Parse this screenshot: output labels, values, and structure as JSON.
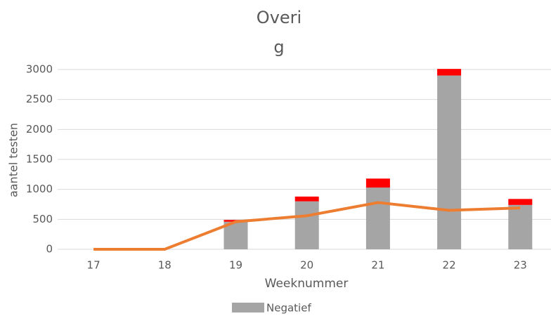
{
  "chart_data": {
    "type": "bar",
    "title": [
      "Overi",
      "g"
    ],
    "x_label": "Weeknummer",
    "y_label": "aantel testen",
    "categories": [
      "17",
      "18",
      "19",
      "20",
      "21",
      "22",
      "23"
    ],
    "series": [
      {
        "name": "Negatief",
        "color": "#a5a5a5",
        "type": "bar",
        "values": [
          0,
          0,
          460,
          800,
          1030,
          2900,
          740
        ]
      },
      {
        "color": "#ff0000",
        "type": "bar",
        "values": [
          0,
          0,
          30,
          80,
          150,
          110,
          100
        ]
      },
      {
        "color": "#ed7d31",
        "type": "line",
        "values": [
          0,
          0,
          460,
          560,
          780,
          650,
          690
        ]
      }
    ],
    "ylim": [
      0,
      3000
    ],
    "yticks": [
      0,
      500,
      1000,
      1500,
      2000,
      2500,
      3000
    ],
    "grid": true
  }
}
